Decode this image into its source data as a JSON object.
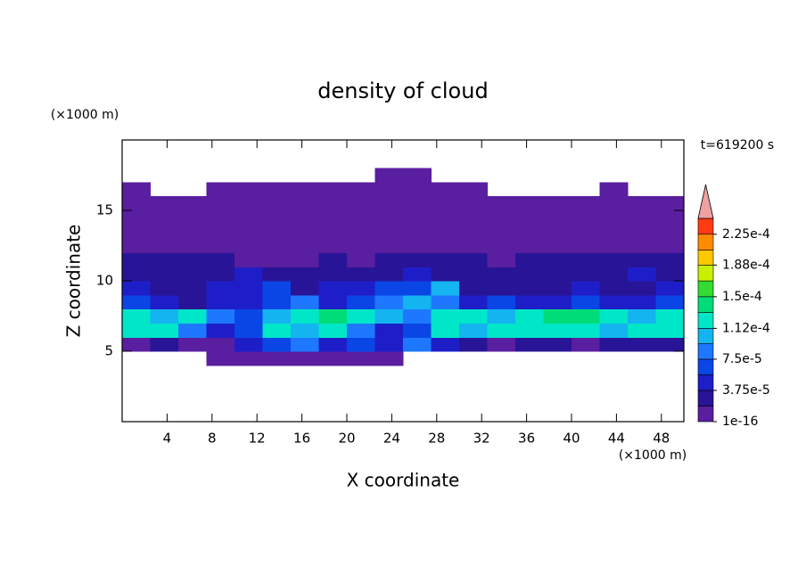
{
  "chart_data": {
    "type": "contour",
    "title": "density of cloud",
    "x_label": "X coordinate",
    "y_label": "Z coordinate",
    "x_unit": "(×1000 m)",
    "y_unit": "(×1000 m)",
    "time_label": "t=619200 s",
    "xlim": [
      0,
      50
    ],
    "ylim": [
      0,
      20
    ],
    "xticks": [
      4,
      8,
      12,
      16,
      20,
      24,
      28,
      32,
      36,
      40,
      44,
      48
    ],
    "yticks": [
      5,
      10,
      15
    ],
    "x": [
      1.25,
      3.75,
      6.25,
      8.75,
      11.25,
      13.75,
      16.25,
      18.75,
      21.25,
      23.75,
      26.25,
      28.75,
      31.25,
      33.75,
      36.25,
      38.75,
      41.25,
      43.75,
      46.25,
      48.75
    ],
    "y": [
      4.5,
      5.5,
      6.5,
      7.5,
      8.5,
      9.5,
      10.5,
      11.5,
      12.5,
      13.5,
      14.5,
      15.5,
      16.5,
      17.5
    ],
    "z": [
      [
        null,
        null,
        null,
        5e-06,
        5e-06,
        5e-06,
        5e-06,
        5e-06,
        5e-06,
        5e-06,
        null,
        null,
        null,
        null,
        null,
        null,
        null,
        null,
        null,
        null
      ],
      [
        5e-06,
        2.5e-05,
        5e-06,
        5e-06,
        4.5e-05,
        6.5e-05,
        8.5e-05,
        4.5e-05,
        6.5e-05,
        4.5e-05,
        8.5e-05,
        4.5e-05,
        2.5e-05,
        5e-06,
        2.5e-05,
        2.5e-05,
        5e-06,
        2.5e-05,
        2.5e-05,
        2.5e-05
      ],
      [
        0.00012,
        0.00012,
        8.5e-05,
        4.5e-05,
        6.5e-05,
        0.00012,
        0.0001,
        0.00012,
        8.5e-05,
        4.5e-05,
        6.5e-05,
        0.00012,
        0.0001,
        0.00012,
        0.00012,
        0.00012,
        0.00012,
        0.0001,
        0.00012,
        0.00012
      ],
      [
        0.00012,
        0.0001,
        0.00012,
        8.5e-05,
        6.5e-05,
        0.0001,
        0.00012,
        0.00014,
        0.00012,
        0.0001,
        8.5e-05,
        0.00012,
        0.00012,
        0.0001,
        0.00012,
        0.00014,
        0.00014,
        0.00012,
        0.0001,
        0.00012
      ],
      [
        6.5e-05,
        4.5e-05,
        2.5e-05,
        4.5e-05,
        4.5e-05,
        6.5e-05,
        8.5e-05,
        4.5e-05,
        6.5e-05,
        8.5e-05,
        0.0001,
        8.5e-05,
        4.5e-05,
        6.5e-05,
        4.5e-05,
        4.5e-05,
        6.5e-05,
        4.5e-05,
        4.5e-05,
        6.5e-05
      ],
      [
        4.5e-05,
        2.5e-05,
        2.5e-05,
        4.5e-05,
        4.5e-05,
        6.5e-05,
        2.5e-05,
        4.5e-05,
        4.5e-05,
        6.5e-05,
        6.5e-05,
        0.0001,
        2.5e-05,
        2.5e-05,
        2.5e-05,
        2.5e-05,
        4.5e-05,
        2.5e-05,
        2.5e-05,
        4.5e-05
      ],
      [
        2.5e-05,
        2.5e-05,
        2.5e-05,
        2.5e-05,
        4.5e-05,
        2.5e-05,
        2.5e-05,
        2.5e-05,
        2.5e-05,
        2.5e-05,
        4.5e-05,
        2.5e-05,
        2.5e-05,
        2.5e-05,
        2.5e-05,
        2.5e-05,
        2.5e-05,
        2.5e-05,
        4.5e-05,
        2.5e-05
      ],
      [
        2.5e-05,
        2.5e-05,
        2.5e-05,
        2.5e-05,
        5e-06,
        5e-06,
        5e-06,
        2.5e-05,
        5e-06,
        2.5e-05,
        2.5e-05,
        2.5e-05,
        2.5e-05,
        5e-06,
        2.5e-05,
        2.5e-05,
        2.5e-05,
        2.5e-05,
        2.5e-05,
        2.5e-05
      ],
      [
        5e-06,
        5e-06,
        5e-06,
        5e-06,
        5e-06,
        5e-06,
        5e-06,
        5e-06,
        5e-06,
        5e-06,
        5e-06,
        5e-06,
        5e-06,
        5e-06,
        5e-06,
        5e-06,
        5e-06,
        5e-06,
        5e-06,
        5e-06
      ],
      [
        5e-06,
        5e-06,
        5e-06,
        5e-06,
        5e-06,
        5e-06,
        5e-06,
        5e-06,
        5e-06,
        5e-06,
        5e-06,
        5e-06,
        5e-06,
        5e-06,
        5e-06,
        5e-06,
        5e-06,
        5e-06,
        5e-06,
        5e-06
      ],
      [
        5e-06,
        5e-06,
        5e-06,
        5e-06,
        5e-06,
        5e-06,
        5e-06,
        5e-06,
        5e-06,
        5e-06,
        5e-06,
        5e-06,
        5e-06,
        5e-06,
        5e-06,
        5e-06,
        5e-06,
        5e-06,
        5e-06,
        5e-06
      ],
      [
        5e-06,
        5e-06,
        5e-06,
        5e-06,
        5e-06,
        5e-06,
        5e-06,
        5e-06,
        5e-06,
        5e-06,
        5e-06,
        5e-06,
        5e-06,
        5e-06,
        5e-06,
        5e-06,
        5e-06,
        5e-06,
        5e-06,
        5e-06
      ],
      [
        5e-06,
        null,
        null,
        5e-06,
        5e-06,
        5e-06,
        5e-06,
        5e-06,
        5e-06,
        5e-06,
        5e-06,
        5e-06,
        5e-06,
        null,
        null,
        null,
        null,
        5e-06,
        null,
        null
      ],
      [
        null,
        null,
        null,
        null,
        null,
        null,
        null,
        null,
        null,
        5e-06,
        5e-06,
        null,
        null,
        null,
        null,
        null,
        null,
        null,
        null,
        null
      ]
    ],
    "colorbar": {
      "levels": [
        1e-16,
        1.875e-05,
        3.75e-05,
        5.625e-05,
        7.5e-05,
        9.35e-05,
        0.000112,
        0.000131,
        0.00015,
        0.000169,
        0.000188,
        0.000206,
        0.000225,
        0.000244
      ],
      "colors": [
        "#5a1ea0",
        "#281496",
        "#1e1ec8",
        "#0a46e6",
        "#1e78ff",
        "#14b4f0",
        "#00e6c8",
        "#00dc78",
        "#32dc32",
        "#c8f000",
        "#ffc800",
        "#ff8c00",
        "#ff3c14"
      ],
      "extend_color": "#f0a0a0",
      "ticks": [
        {
          "value": 1e-16,
          "label": "1e-16"
        },
        {
          "value": 3.75e-05,
          "label": "3.75e-5"
        },
        {
          "value": 7.5e-05,
          "label": "7.5e-5"
        },
        {
          "value": 0.000112,
          "label": "1.12e-4"
        },
        {
          "value": 0.00015,
          "label": "1.5e-4"
        },
        {
          "value": 0.000188,
          "label": "1.88e-4"
        },
        {
          "value": 0.000225,
          "label": "2.25e-4"
        }
      ]
    }
  }
}
